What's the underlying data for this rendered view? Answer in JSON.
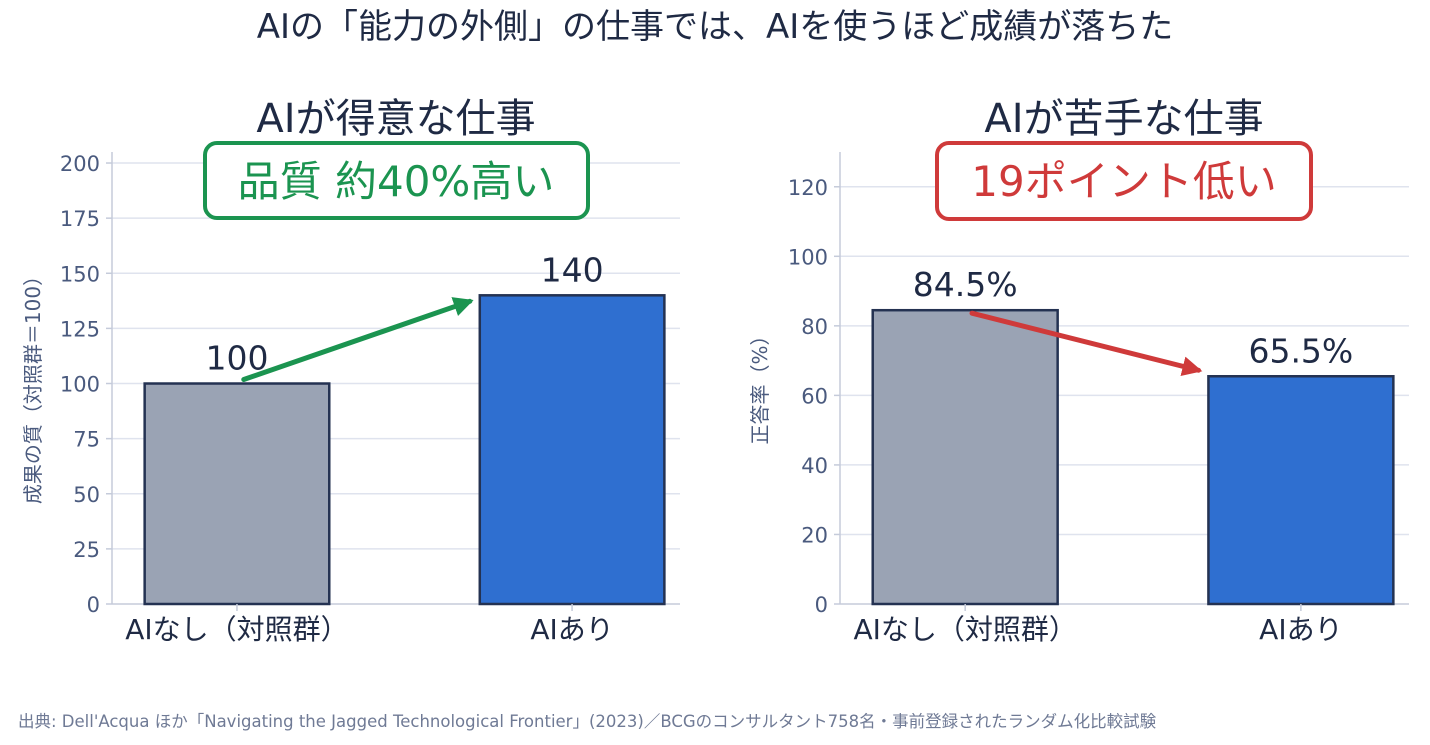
{
  "suptitle": "AIの「能力の外側」の仕事では、AIを使うほど成績が落ちた",
  "source": "出典: Dell'Acqua ほか「Navigating the Jagged Technological Frontier」(2023)／BCGのコンサルタント758名・事前登録されたランダム化比較試験",
  "colors": {
    "text": "#1f2a44",
    "tick": "#4a5a7e",
    "grid": "#dfe3ee",
    "axis": "#c5cbda",
    "bar_control": "#9aa3b4",
    "bar_ai": "#2f6fd0",
    "bar_edge": "#243252",
    "good": "#1b9450",
    "bad": "#cf3a3a",
    "source": "#6f7a95"
  },
  "chart_data": [
    {
      "type": "bar",
      "title": "AIが得意な仕事",
      "ylabel": "成果の質（対照群＝100）",
      "categories": [
        "AIなし（対照群）",
        "AIあり"
      ],
      "values": [
        100,
        140
      ],
      "value_labels": [
        "100",
        "140"
      ],
      "ylim": [
        0,
        205
      ],
      "yticks": [
        0,
        25,
        50,
        75,
        100,
        125,
        150,
        175,
        200
      ],
      "grid": true,
      "annotation": "品質 約40%高い",
      "annotation_color": "good"
    },
    {
      "type": "bar",
      "title": "AIが苦手な仕事",
      "ylabel": "正答率（%）",
      "categories": [
        "AIなし（対照群）",
        "AIあり"
      ],
      "values": [
        84.5,
        65.5
      ],
      "value_labels": [
        "84.5%",
        "65.5%"
      ],
      "ylim": [
        0,
        130
      ],
      "yticks": [
        0,
        20,
        40,
        60,
        80,
        100,
        120
      ],
      "grid": true,
      "annotation": "19ポイント低い",
      "annotation_color": "bad"
    }
  ]
}
